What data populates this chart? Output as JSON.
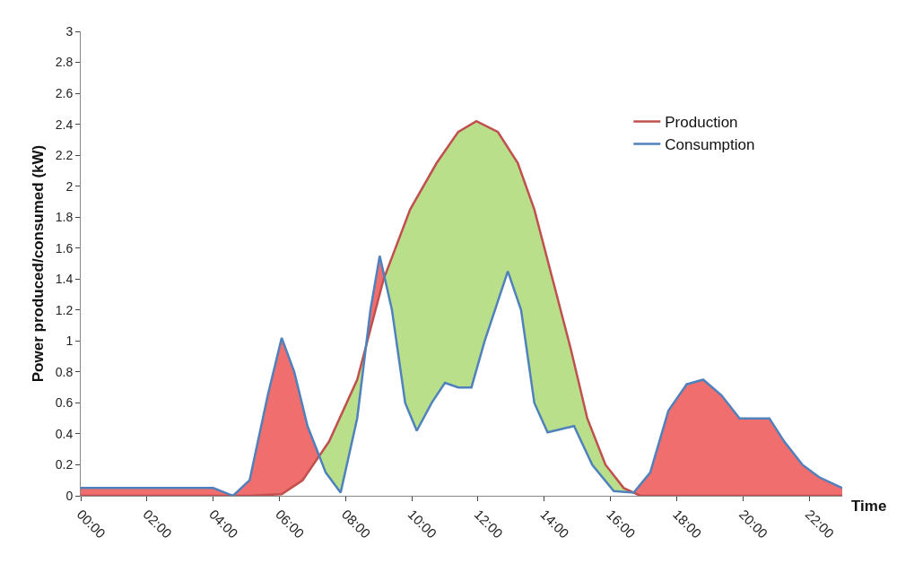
{
  "chart_data": {
    "type": "line",
    "xlabel": "Time",
    "ylabel": "Power produced/consumed (kW)",
    "xlim": [
      0,
      23
    ],
    "xticks": [
      {
        "value": 0,
        "label": "00:00"
      },
      {
        "value": 2,
        "label": "02:00"
      },
      {
        "value": 4,
        "label": "04:00"
      },
      {
        "value": 6,
        "label": "06:00"
      },
      {
        "value": 8,
        "label": "08:00"
      },
      {
        "value": 10,
        "label": "10:00"
      },
      {
        "value": 12,
        "label": "12:00"
      },
      {
        "value": 14,
        "label": "14:00"
      },
      {
        "value": 16,
        "label": "16:00"
      },
      {
        "value": 18,
        "label": "18:00"
      },
      {
        "value": 20,
        "label": "20:00"
      },
      {
        "value": 22,
        "label": "22:00"
      }
    ],
    "ylim": [
      0,
      3
    ],
    "yticks": [
      0,
      0.2,
      0.4,
      0.6,
      0.8,
      1,
      1.2,
      1.4,
      1.6,
      1.8,
      2,
      2.2,
      2.4,
      2.6,
      2.8,
      3
    ],
    "legend": "top right",
    "marker": "none",
    "line_style": "solid",
    "series": [
      {
        "name": "Production",
        "color": "#c0504d",
        "x": [
          0,
          5.1,
          6.07,
          6.7,
          7.5,
          8.35,
          9.15,
          9.95,
          10.75,
          11.4,
          11.95,
          12.6,
          13.2,
          13.7,
          14.25,
          14.8,
          15.3,
          15.85,
          16.4,
          16.9,
          23
        ],
        "values": [
          0,
          0,
          0.01,
          0.1,
          0.35,
          0.75,
          1.4,
          1.85,
          2.15,
          2.35,
          2.42,
          2.35,
          2.15,
          1.85,
          1.4,
          0.95,
          0.5,
          0.2,
          0.05,
          0,
          0
        ]
      },
      {
        "name": "Consumption",
        "color": "#4f81bd",
        "x": [
          0,
          4.0,
          4.6,
          5.1,
          5.65,
          6.07,
          6.45,
          6.85,
          7.4,
          7.85,
          8.35,
          8.75,
          9.03,
          9.4,
          9.8,
          10.15,
          10.6,
          11,
          11.4,
          11.8,
          12.2,
          12.9,
          13.3,
          13.7,
          14.1,
          14.5,
          14.9,
          15.45,
          16.1,
          16.7,
          17.2,
          17.75,
          18.3,
          18.8,
          19.35,
          19.9,
          20.4,
          20.8,
          21.25,
          21.8,
          22.3,
          23
        ],
        "values": [
          0.05,
          0.05,
          0,
          0.1,
          0.65,
          1.02,
          0.8,
          0.45,
          0.15,
          0.02,
          0.5,
          1.2,
          1.55,
          1.2,
          0.6,
          0.42,
          0.6,
          0.73,
          0.7,
          0.7,
          1.0,
          1.45,
          1.2,
          0.6,
          0.41,
          0.43,
          0.45,
          0.2,
          0.03,
          0.02,
          0.15,
          0.55,
          0.72,
          0.75,
          0.65,
          0.5,
          0.5,
          0.5,
          0.35,
          0.2,
          0.12,
          0.05
        ]
      }
    ]
  }
}
